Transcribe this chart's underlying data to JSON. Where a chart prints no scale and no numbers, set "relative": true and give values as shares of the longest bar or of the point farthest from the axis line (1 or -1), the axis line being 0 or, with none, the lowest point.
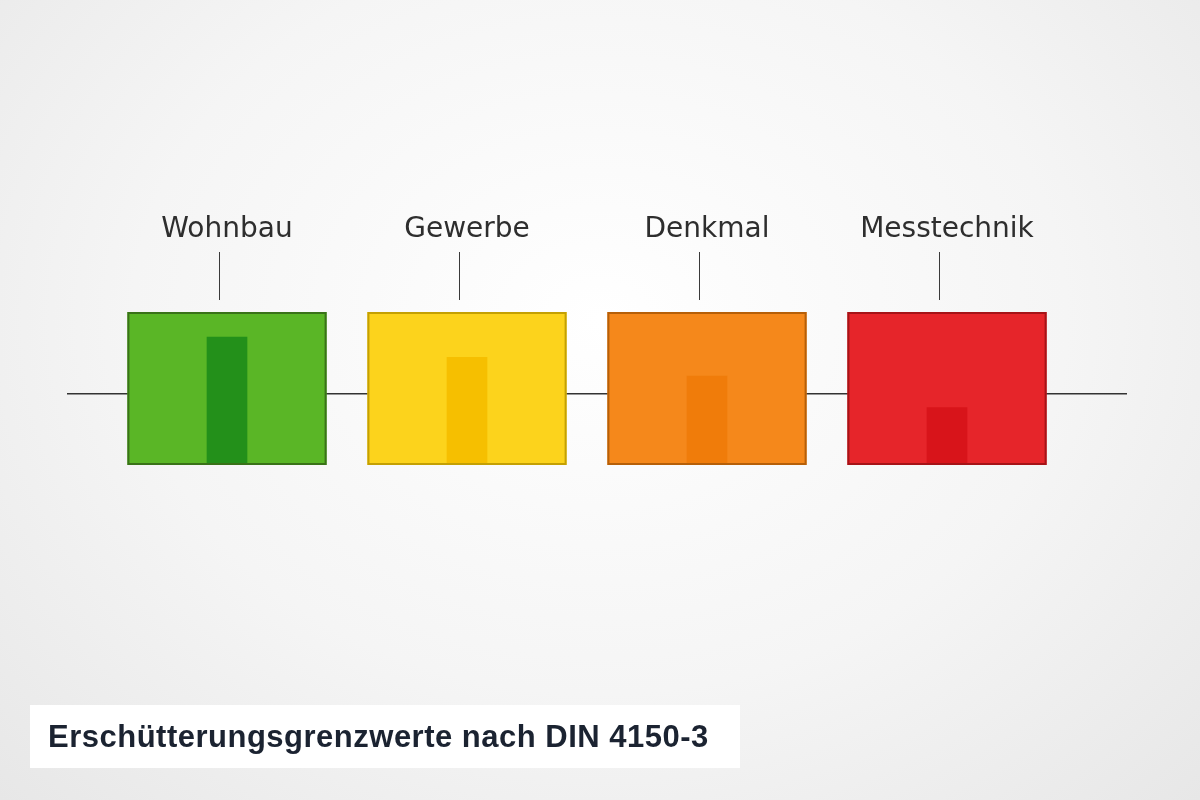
{
  "chart_data": {
    "type": "bar",
    "title": "Erschütterungsgrenzwerte nach DIN 4150-3",
    "categories": [
      "Wohnbau",
      "Gewerbe",
      "Denkmal",
      "Messtechnik"
    ],
    "values": [
      1,
      0.84,
      0.69,
      0.44
    ],
    "colors": [
      "#23901a",
      "#f6bf00",
      "#f07c0a",
      "#d8141a"
    ],
    "relative": true,
    "bands": [
      {
        "axis": "x",
        "from": "Wohnbau",
        "to": "Wohnbau",
        "color": "#5ab626"
      },
      {
        "axis": "x",
        "from": "Gewerbe",
        "to": "Gewerbe",
        "color": "#fcd31c"
      },
      {
        "axis": "x",
        "from": "Denkmal",
        "to": "Denkmal",
        "color": "#f5881b"
      },
      {
        "axis": "x",
        "from": "Messtechnik",
        "to": "Messtechnik",
        "color": "#e6252a"
      }
    ],
    "ref_lines": [
      {
        "axis": "y",
        "value": 0.55,
        "color": "#333333",
        "line_style": "solid"
      }
    ]
  }
}
